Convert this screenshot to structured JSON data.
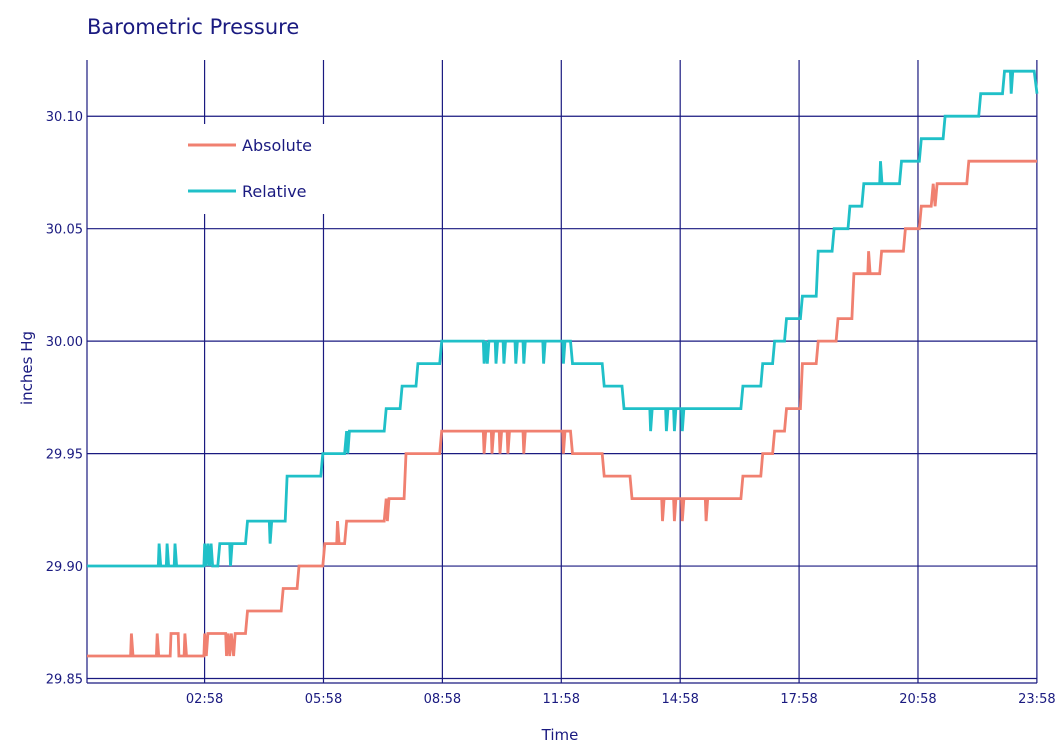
{
  "chart_data": {
    "type": "line",
    "title": "Barometric Pressure",
    "xlabel": "Time",
    "ylabel": "inches Hg",
    "x_range_hours": [
      0,
      23.97
    ],
    "ylim": [
      29.848,
      30.125
    ],
    "x_ticks": [
      {
        "hour": 2.967,
        "label": "02:58"
      },
      {
        "hour": 5.967,
        "label": "05:58"
      },
      {
        "hour": 8.967,
        "label": "08:58"
      },
      {
        "hour": 11.967,
        "label": "11:58"
      },
      {
        "hour": 14.967,
        "label": "14:58"
      },
      {
        "hour": 17.967,
        "label": "17:58"
      },
      {
        "hour": 20.967,
        "label": "20:58"
      },
      {
        "hour": 23.967,
        "label": "23:58"
      }
    ],
    "y_ticks": [
      {
        "value": 29.85,
        "label": "29.85"
      },
      {
        "value": 29.9,
        "label": "29.90"
      },
      {
        "value": 29.95,
        "label": "29.95"
      },
      {
        "value": 30.0,
        "label": "30.00"
      },
      {
        "value": 30.05,
        "label": "30.05"
      },
      {
        "value": 30.1,
        "label": "30.10"
      }
    ],
    "grid": true,
    "legend_position": "top-left",
    "series": [
      {
        "name": "Absolute",
        "color": "#f08070",
        "points": [
          [
            0.0,
            29.86
          ],
          [
            1.1,
            29.86
          ],
          [
            1.12,
            29.87
          ],
          [
            1.16,
            29.86
          ],
          [
            1.75,
            29.86
          ],
          [
            1.77,
            29.87
          ],
          [
            1.81,
            29.86
          ],
          [
            2.1,
            29.86
          ],
          [
            2.12,
            29.87
          ],
          [
            2.3,
            29.87
          ],
          [
            2.32,
            29.86
          ],
          [
            2.45,
            29.86
          ],
          [
            2.47,
            29.87
          ],
          [
            2.51,
            29.86
          ],
          [
            2.95,
            29.86
          ],
          [
            2.97,
            29.87
          ],
          [
            3.01,
            29.86
          ],
          [
            3.05,
            29.87
          ],
          [
            3.5,
            29.87
          ],
          [
            3.52,
            29.86
          ],
          [
            3.56,
            29.87
          ],
          [
            3.6,
            29.86
          ],
          [
            3.64,
            29.87
          ],
          [
            3.7,
            29.86
          ],
          [
            3.74,
            29.87
          ],
          [
            4.0,
            29.87
          ],
          [
            4.05,
            29.88
          ],
          [
            4.9,
            29.88
          ],
          [
            4.95,
            29.89
          ],
          [
            5.3,
            29.89
          ],
          [
            5.35,
            29.9
          ],
          [
            5.95,
            29.9
          ],
          [
            6.0,
            29.91
          ],
          [
            6.3,
            29.91
          ],
          [
            6.32,
            29.92
          ],
          [
            6.36,
            29.91
          ],
          [
            6.5,
            29.91
          ],
          [
            6.55,
            29.92
          ],
          [
            7.5,
            29.92
          ],
          [
            7.55,
            29.93
          ],
          [
            7.58,
            29.92
          ],
          [
            7.62,
            29.93
          ],
          [
            8.0,
            29.93
          ],
          [
            8.05,
            29.95
          ],
          [
            8.9,
            29.95
          ],
          [
            8.95,
            29.96
          ],
          [
            10.0,
            29.96
          ],
          [
            10.02,
            29.95
          ],
          [
            10.06,
            29.96
          ],
          [
            10.2,
            29.96
          ],
          [
            10.22,
            29.95
          ],
          [
            10.26,
            29.96
          ],
          [
            10.4,
            29.96
          ],
          [
            10.42,
            29.95
          ],
          [
            10.46,
            29.96
          ],
          [
            10.6,
            29.96
          ],
          [
            10.62,
            29.95
          ],
          [
            10.66,
            29.96
          ],
          [
            11.0,
            29.96
          ],
          [
            11.02,
            29.95
          ],
          [
            11.06,
            29.96
          ],
          [
            12.0,
            29.96
          ],
          [
            12.02,
            29.95
          ],
          [
            12.06,
            29.96
          ],
          [
            12.2,
            29.96
          ],
          [
            12.25,
            29.95
          ],
          [
            13.0,
            29.95
          ],
          [
            13.05,
            29.94
          ],
          [
            13.7,
            29.94
          ],
          [
            13.75,
            29.93
          ],
          [
            14.5,
            29.93
          ],
          [
            14.52,
            29.92
          ],
          [
            14.56,
            29.93
          ],
          [
            14.8,
            29.93
          ],
          [
            14.82,
            29.92
          ],
          [
            14.86,
            29.93
          ],
          [
            15.0,
            29.93
          ],
          [
            15.02,
            29.92
          ],
          [
            15.06,
            29.93
          ],
          [
            15.6,
            29.93
          ],
          [
            15.62,
            29.92
          ],
          [
            15.66,
            29.93
          ],
          [
            16.5,
            29.93
          ],
          [
            16.55,
            29.94
          ],
          [
            17.0,
            29.94
          ],
          [
            17.05,
            29.95
          ],
          [
            17.3,
            29.95
          ],
          [
            17.35,
            29.96
          ],
          [
            17.6,
            29.96
          ],
          [
            17.65,
            29.97
          ],
          [
            18.0,
            29.97
          ],
          [
            18.05,
            29.99
          ],
          [
            18.4,
            29.99
          ],
          [
            18.45,
            30.0
          ],
          [
            18.9,
            30.0
          ],
          [
            18.95,
            30.01
          ],
          [
            19.3,
            30.01
          ],
          [
            19.35,
            30.03
          ],
          [
            19.7,
            30.03
          ],
          [
            19.72,
            30.04
          ],
          [
            19.76,
            30.03
          ],
          [
            20.0,
            30.03
          ],
          [
            20.05,
            30.04
          ],
          [
            20.6,
            30.04
          ],
          [
            20.65,
            30.05
          ],
          [
            21.0,
            30.05
          ],
          [
            21.05,
            30.06
          ],
          [
            21.3,
            30.06
          ],
          [
            21.35,
            30.07
          ],
          [
            21.4,
            30.06
          ],
          [
            21.45,
            30.07
          ],
          [
            22.2,
            30.07
          ],
          [
            22.25,
            30.08
          ],
          [
            23.97,
            30.08
          ]
        ]
      },
      {
        "name": "Relative",
        "color": "#20c0c8",
        "points": [
          [
            0.0,
            29.9
          ],
          [
            1.8,
            29.9
          ],
          [
            1.82,
            29.91
          ],
          [
            1.86,
            29.9
          ],
          [
            2.0,
            29.9
          ],
          [
            2.02,
            29.91
          ],
          [
            2.06,
            29.9
          ],
          [
            2.2,
            29.9
          ],
          [
            2.22,
            29.91
          ],
          [
            2.26,
            29.9
          ],
          [
            2.95,
            29.9
          ],
          [
            2.97,
            29.91
          ],
          [
            3.01,
            29.9
          ],
          [
            3.05,
            29.91
          ],
          [
            3.09,
            29.9
          ],
          [
            3.13,
            29.91
          ],
          [
            3.17,
            29.9
          ],
          [
            3.3,
            29.9
          ],
          [
            3.35,
            29.91
          ],
          [
            3.6,
            29.91
          ],
          [
            3.62,
            29.9
          ],
          [
            3.66,
            29.91
          ],
          [
            4.0,
            29.91
          ],
          [
            4.05,
            29.92
          ],
          [
            4.6,
            29.92
          ],
          [
            4.62,
            29.91
          ],
          [
            4.66,
            29.92
          ],
          [
            5.0,
            29.92
          ],
          [
            5.05,
            29.94
          ],
          [
            5.9,
            29.94
          ],
          [
            5.95,
            29.95
          ],
          [
            6.5,
            29.95
          ],
          [
            6.55,
            29.96
          ],
          [
            6.58,
            29.95
          ],
          [
            6.62,
            29.96
          ],
          [
            7.5,
            29.96
          ],
          [
            7.55,
            29.97
          ],
          [
            7.9,
            29.97
          ],
          [
            7.95,
            29.98
          ],
          [
            8.3,
            29.98
          ],
          [
            8.35,
            29.99
          ],
          [
            8.9,
            29.99
          ],
          [
            8.95,
            30.0
          ],
          [
            10.0,
            30.0
          ],
          [
            10.02,
            29.99
          ],
          [
            10.06,
            30.0
          ],
          [
            10.1,
            29.99
          ],
          [
            10.14,
            30.0
          ],
          [
            10.3,
            30.0
          ],
          [
            10.32,
            29.99
          ],
          [
            10.36,
            30.0
          ],
          [
            10.5,
            30.0
          ],
          [
            10.52,
            29.99
          ],
          [
            10.56,
            30.0
          ],
          [
            10.8,
            30.0
          ],
          [
            10.82,
            29.99
          ],
          [
            10.86,
            30.0
          ],
          [
            11.0,
            30.0
          ],
          [
            11.02,
            29.99
          ],
          [
            11.06,
            30.0
          ],
          [
            11.5,
            30.0
          ],
          [
            11.52,
            29.99
          ],
          [
            11.56,
            30.0
          ],
          [
            12.0,
            30.0
          ],
          [
            12.02,
            29.99
          ],
          [
            12.06,
            30.0
          ],
          [
            12.2,
            30.0
          ],
          [
            12.25,
            29.99
          ],
          [
            13.0,
            29.99
          ],
          [
            13.05,
            29.98
          ],
          [
            13.5,
            29.98
          ],
          [
            13.55,
            29.97
          ],
          [
            14.2,
            29.97
          ],
          [
            14.22,
            29.96
          ],
          [
            14.26,
            29.97
          ],
          [
            14.6,
            29.97
          ],
          [
            14.62,
            29.96
          ],
          [
            14.66,
            29.97
          ],
          [
            14.8,
            29.97
          ],
          [
            14.82,
            29.96
          ],
          [
            14.86,
            29.97
          ],
          [
            15.0,
            29.97
          ],
          [
            15.02,
            29.96
          ],
          [
            15.06,
            29.97
          ],
          [
            16.5,
            29.97
          ],
          [
            16.55,
            29.98
          ],
          [
            17.0,
            29.98
          ],
          [
            17.05,
            29.99
          ],
          [
            17.3,
            29.99
          ],
          [
            17.35,
            30.0
          ],
          [
            17.6,
            30.0
          ],
          [
            17.65,
            30.01
          ],
          [
            18.0,
            30.01
          ],
          [
            18.05,
            30.02
          ],
          [
            18.4,
            30.02
          ],
          [
            18.45,
            30.04
          ],
          [
            18.8,
            30.04
          ],
          [
            18.85,
            30.05
          ],
          [
            19.2,
            30.05
          ],
          [
            19.25,
            30.06
          ],
          [
            19.55,
            30.06
          ],
          [
            19.6,
            30.07
          ],
          [
            20.0,
            30.07
          ],
          [
            20.02,
            30.08
          ],
          [
            20.06,
            30.07
          ],
          [
            20.5,
            30.07
          ],
          [
            20.55,
            30.08
          ],
          [
            21.0,
            30.08
          ],
          [
            21.05,
            30.09
          ],
          [
            21.6,
            30.09
          ],
          [
            21.65,
            30.1
          ],
          [
            22.0,
            30.1
          ],
          [
            22.05,
            30.1
          ],
          [
            22.5,
            30.1
          ],
          [
            22.55,
            30.11
          ],
          [
            23.1,
            30.11
          ],
          [
            23.15,
            30.12
          ],
          [
            23.3,
            30.12
          ],
          [
            23.32,
            30.11
          ],
          [
            23.36,
            30.12
          ],
          [
            23.9,
            30.12
          ],
          [
            23.97,
            30.11
          ]
        ]
      }
    ]
  }
}
